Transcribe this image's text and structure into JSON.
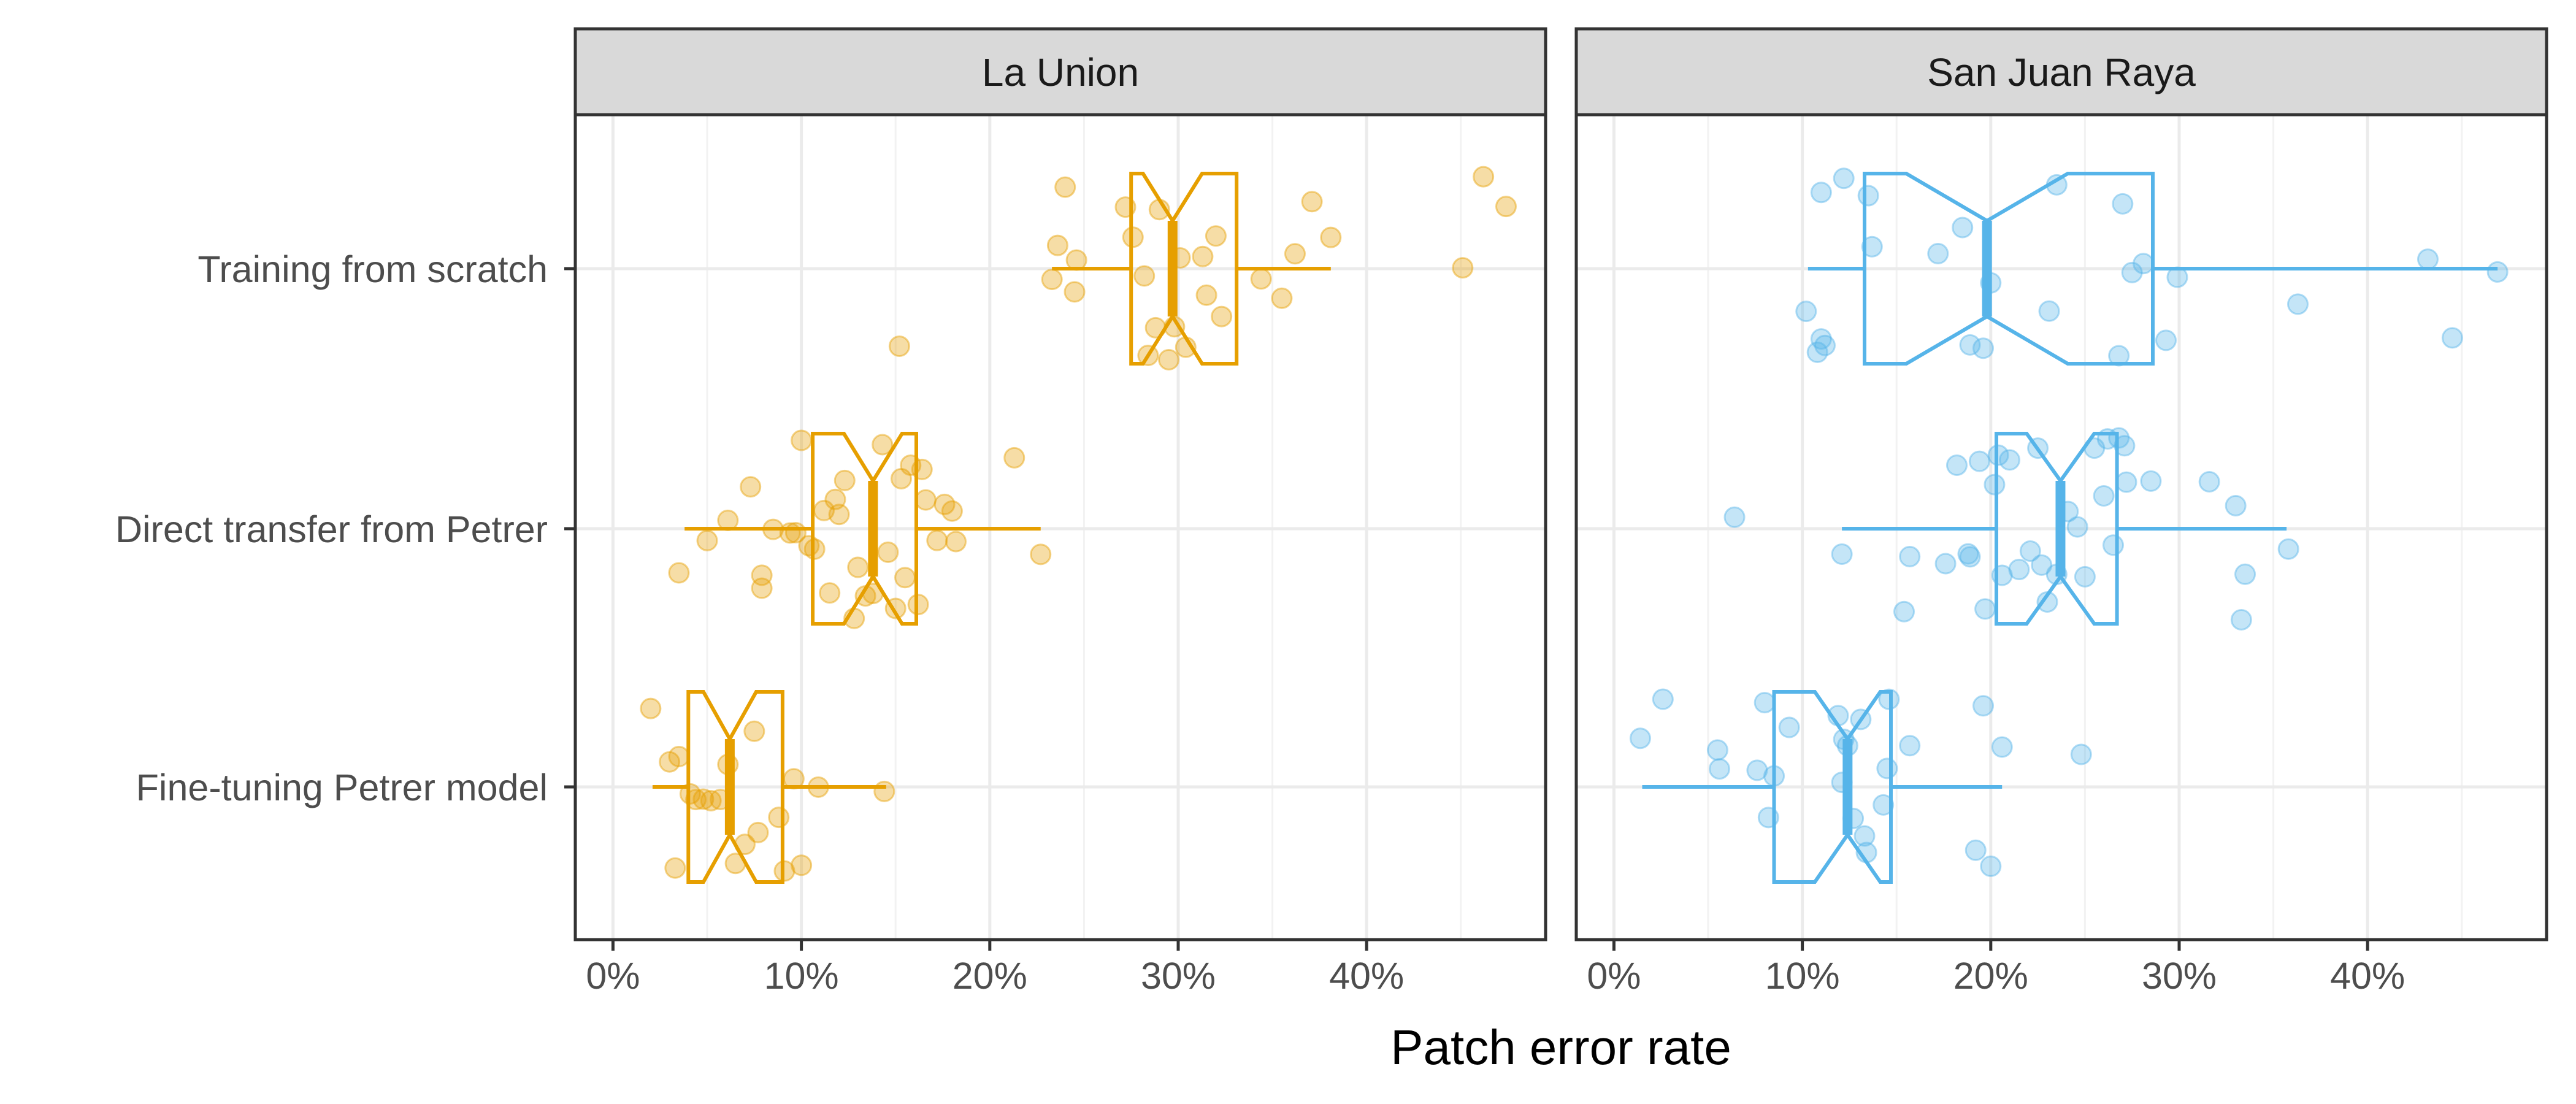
{
  "chart_data": {
    "type": "boxplot",
    "xlabel": "Patch error rate",
    "ylabel": "",
    "xlim": [
      -0.02,
      0.495
    ],
    "x_ticks": [
      0,
      0.1,
      0.2,
      0.3,
      0.4
    ],
    "x_tick_labels": [
      "0%",
      "10%",
      "20%",
      "30%",
      "40%"
    ],
    "categories": [
      "Training from scratch",
      "Direct transfer from Petrer",
      "Fine-tuning Petrer model"
    ],
    "grid": true,
    "legend": "none",
    "panels": [
      {
        "name": "La Union",
        "color": "#E69F00",
        "boxes": [
          {
            "category": "Training from scratch",
            "whisker_low": 0.233,
            "q1": 0.275,
            "median": 0.297,
            "q3": 0.331,
            "whisker_high": 0.381
          },
          {
            "category": "Direct transfer from Petrer",
            "whisker_low": 0.038,
            "q1": 0.106,
            "median": 0.138,
            "q3": 0.161,
            "whisker_high": 0.227
          },
          {
            "category": "Fine-tuning Petrer model",
            "whisker_low": 0.021,
            "q1": 0.04,
            "median": 0.062,
            "q3": 0.09,
            "whisker_high": 0.145
          }
        ],
        "points": [
          {
            "category": "Training from scratch",
            "x": [
              0.152,
              0.24,
              0.233,
              0.236,
              0.246,
              0.245,
              0.272,
              0.276,
              0.282,
              0.284,
              0.288,
              0.29,
              0.295,
              0.298,
              0.301,
              0.304,
              0.313,
              0.315,
              0.32,
              0.323,
              0.344,
              0.355,
              0.362,
              0.371,
              0.381,
              0.451,
              0.462,
              0.474
            ]
          },
          {
            "category": "Direct transfer from Petrer",
            "x": [
              0.035,
              0.05,
              0.061,
              0.073,
              0.079,
              0.079,
              0.085,
              0.094,
              0.097,
              0.1,
              0.104,
              0.107,
              0.112,
              0.115,
              0.118,
              0.12,
              0.123,
              0.128,
              0.13,
              0.134,
              0.138,
              0.143,
              0.146,
              0.15,
              0.153,
              0.155,
              0.158,
              0.162,
              0.164,
              0.166,
              0.172,
              0.176,
              0.18,
              0.182,
              0.213,
              0.227
            ]
          },
          {
            "category": "Fine-tuning Petrer model",
            "x": [
              0.02,
              0.03,
              0.035,
              0.033,
              0.041,
              0.044,
              0.048,
              0.052,
              0.057,
              0.061,
              0.065,
              0.07,
              0.075,
              0.077,
              0.088,
              0.091,
              0.096,
              0.1,
              0.109,
              0.144
            ]
          }
        ]
      },
      {
        "name": "San Juan Raya",
        "color": "#56B4E9",
        "boxes": [
          {
            "category": "Training from scratch",
            "whisker_low": 0.103,
            "q1": 0.133,
            "median": 0.198,
            "q3": 0.286,
            "whisker_high": 0.469
          },
          {
            "category": "Direct transfer from Petrer",
            "whisker_low": 0.121,
            "q1": 0.203,
            "median": 0.237,
            "q3": 0.267,
            "whisker_high": 0.357
          },
          {
            "category": "Fine-tuning Petrer model",
            "whisker_low": 0.015,
            "q1": 0.085,
            "median": 0.124,
            "q3": 0.147,
            "whisker_high": 0.206
          }
        ],
        "points": [
          {
            "category": "Training from scratch",
            "x": [
              0.102,
              0.108,
              0.11,
              0.11,
              0.112,
              0.122,
              0.135,
              0.137,
              0.172,
              0.185,
              0.189,
              0.196,
              0.2,
              0.231,
              0.235,
              0.268,
              0.27,
              0.275,
              0.281,
              0.293,
              0.299,
              0.363,
              0.432,
              0.445,
              0.469
            ]
          },
          {
            "category": "Direct transfer from Petrer",
            "x": [
              0.064,
              0.121,
              0.154,
              0.157,
              0.176,
              0.182,
              0.188,
              0.189,
              0.194,
              0.197,
              0.202,
              0.204,
              0.206,
              0.21,
              0.215,
              0.221,
              0.225,
              0.227,
              0.23,
              0.235,
              0.241,
              0.246,
              0.25,
              0.255,
              0.26,
              0.262,
              0.265,
              0.268,
              0.271,
              0.272,
              0.285,
              0.316,
              0.33,
              0.333,
              0.335,
              0.358
            ]
          },
          {
            "category": "Fine-tuning Petrer model",
            "x": [
              0.014,
              0.026,
              0.055,
              0.056,
              0.076,
              0.08,
              0.082,
              0.085,
              0.093,
              0.119,
              0.121,
              0.122,
              0.124,
              0.127,
              0.131,
              0.133,
              0.134,
              0.143,
              0.145,
              0.146,
              0.157,
              0.192,
              0.196,
              0.2,
              0.206,
              0.248
            ]
          }
        ]
      }
    ]
  }
}
